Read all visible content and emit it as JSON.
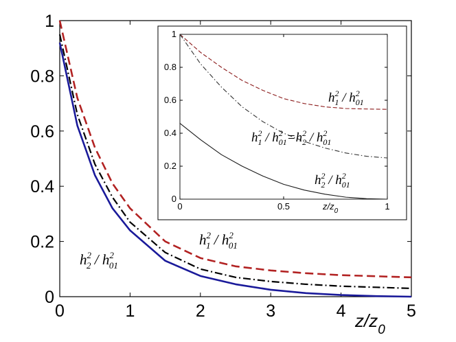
{
  "chart_data": [
    {
      "type": "line",
      "xlabel": "z/z",
      "xlabel_sub": "0",
      "xlim": [
        0,
        5
      ],
      "ylim": [
        0,
        1
      ],
      "xticks": [
        0,
        1,
        2,
        3,
        4,
        5
      ],
      "yticks": [
        0,
        0.2,
        0.4,
        0.6,
        0.8,
        1
      ],
      "x": [
        0,
        0.25,
        0.5,
        0.75,
        1,
        1.5,
        2,
        2.5,
        3,
        3.5,
        4,
        4.5,
        5
      ],
      "series": [
        {
          "style": "dashed",
          "color": "#b22222",
          "values": [
            1.0,
            0.72,
            0.54,
            0.41,
            0.32,
            0.2,
            0.14,
            0.11,
            0.095,
            0.085,
            0.078,
            0.074,
            0.07
          ]
        },
        {
          "style": "dash-dot",
          "color": "#000000",
          "values": [
            0.95,
            0.66,
            0.48,
            0.36,
            0.27,
            0.16,
            0.1,
            0.07,
            0.055,
            0.045,
            0.038,
            0.034,
            0.03
          ]
        },
        {
          "style": "solid",
          "color": "#1a1a9a",
          "values": [
            0.92,
            0.62,
            0.44,
            0.32,
            0.24,
            0.13,
            0.075,
            0.045,
            0.025,
            0.013,
            0.006,
            0.002,
            0.0
          ]
        }
      ],
      "annotations": [
        {
          "num_base": "h",
          "num_sub": "1",
          "num_sup": "2",
          "den_base": "h",
          "den_sub": "01",
          "den_sup": "2"
        },
        {
          "num_base": "h",
          "num_sub": "2",
          "num_sup": "2",
          "den_base": "h",
          "den_sub": "01",
          "den_sup": "2"
        }
      ]
    },
    {
      "type": "line",
      "xlabel": "z/z",
      "xlabel_sub": "0",
      "xlim": [
        0,
        1
      ],
      "ylim": [
        0,
        1
      ],
      "xticks": [
        0,
        0.5,
        1
      ],
      "yticks": [
        0,
        0.2,
        0.4,
        0.6,
        0.8,
        1
      ],
      "x": [
        0,
        0.1,
        0.2,
        0.3,
        0.4,
        0.5,
        0.6,
        0.7,
        0.8,
        0.9,
        1
      ],
      "series": [
        {
          "style": "dashed",
          "color": "#8b1a1a",
          "values": [
            1.0,
            0.89,
            0.8,
            0.72,
            0.66,
            0.61,
            0.58,
            0.56,
            0.55,
            0.547,
            0.545
          ]
        },
        {
          "style": "dash-dot",
          "color": "#333333",
          "values": [
            1.0,
            0.82,
            0.68,
            0.56,
            0.47,
            0.4,
            0.35,
            0.31,
            0.28,
            0.26,
            0.25
          ]
        },
        {
          "style": "solid",
          "color": "#1a1a1a",
          "values": [
            0.46,
            0.36,
            0.27,
            0.2,
            0.14,
            0.09,
            0.055,
            0.03,
            0.012,
            0.003,
            0.0
          ]
        }
      ],
      "annotations": [
        {
          "num_base": "h",
          "num_sub": "1",
          "num_sup": "2",
          "den_base": "h",
          "den_sub": "01",
          "den_sup": "2"
        },
        {
          "num_base": "h",
          "num_sub": "1",
          "num_sup": "2",
          "den_base": "h",
          "den_sub": "01",
          "den_sup": "2",
          "equals": "=",
          "num2_base": "h",
          "num2_sub": "2",
          "num2_sup": "2",
          "den2_base": "h",
          "den2_sub": "01",
          "den2_sup": "2"
        },
        {
          "num_base": "h",
          "num_sub": "2",
          "num_sup": "2",
          "den_base": "h",
          "den_sub": "01",
          "den_sup": "2"
        }
      ]
    }
  ]
}
